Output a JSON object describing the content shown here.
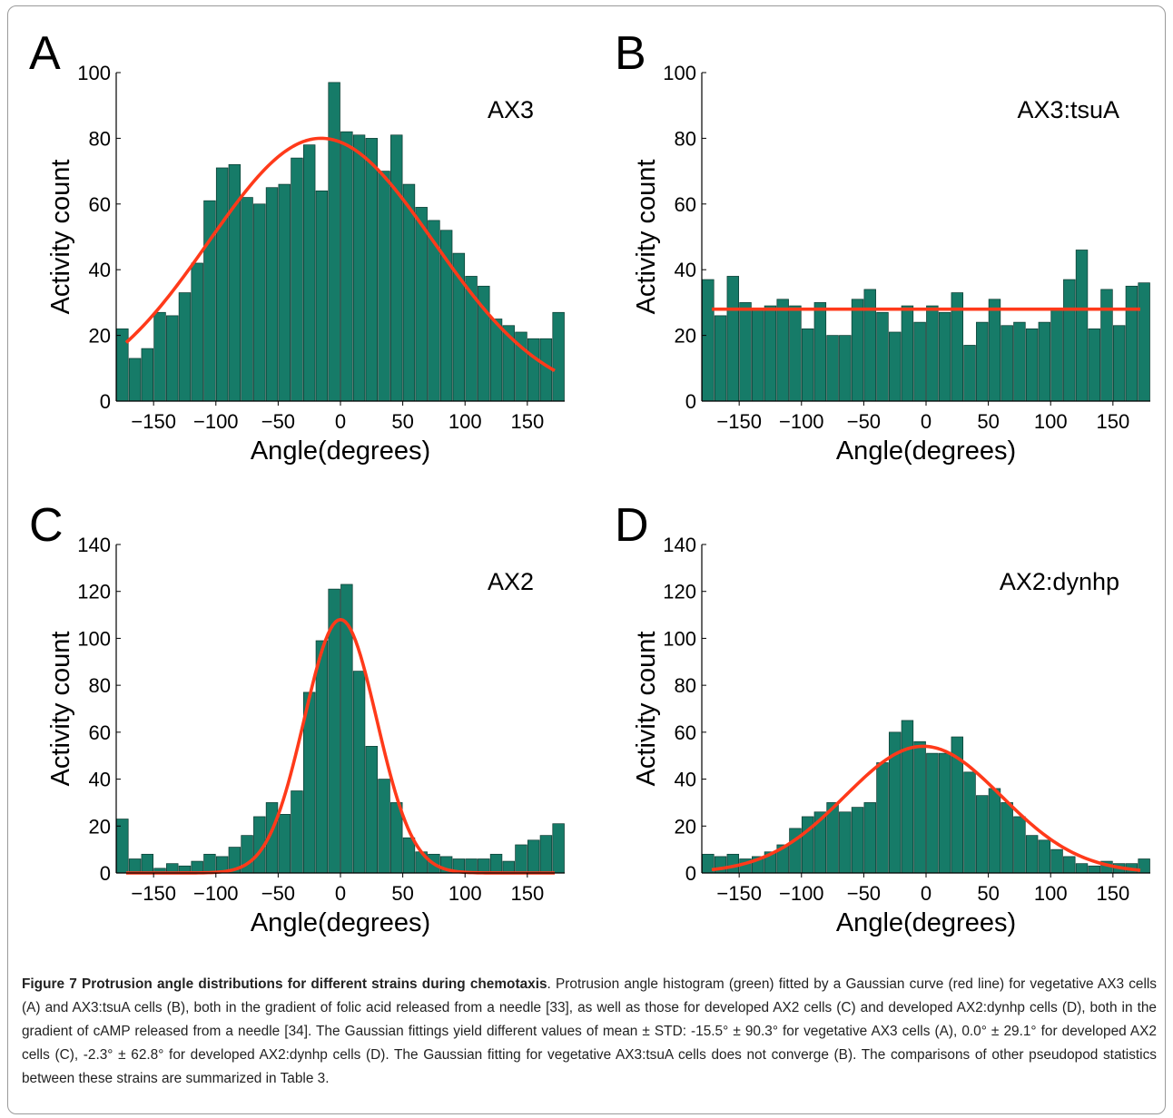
{
  "chart_data": [
    {
      "panel": "A",
      "type": "bar",
      "annotation": "AX3",
      "xlabel": "Angle(degrees)",
      "ylabel": "Activity count",
      "xlim": [
        -180,
        180
      ],
      "ylim": [
        0,
        100
      ],
      "xticks": [
        -150,
        -100,
        -50,
        0,
        50,
        100,
        150
      ],
      "yticks": [
        0,
        20,
        40,
        60,
        80,
        100
      ],
      "x": [
        -175,
        -165,
        -155,
        -145,
        -135,
        -125,
        -115,
        -105,
        -95,
        -85,
        -75,
        -65,
        -55,
        -45,
        -35,
        -25,
        -15,
        -5,
        5,
        15,
        25,
        35,
        45,
        55,
        65,
        75,
        85,
        95,
        105,
        115,
        125,
        135,
        145,
        155,
        165,
        175
      ],
      "values": [
        22,
        13,
        16,
        27,
        26,
        33,
        42,
        61,
        71,
        72,
        62,
        60,
        65,
        66,
        74,
        78,
        64,
        97,
        82,
        81,
        80,
        70,
        81,
        66,
        59,
        55,
        52,
        45,
        38,
        35,
        25,
        23,
        21,
        19,
        19,
        27
      ],
      "fit": {
        "type": "gaussian",
        "mean": -15.5,
        "std": 90.3,
        "amplitude": 80
      },
      "bar_color": "#167b68",
      "fit_color": "#ff3a1a"
    },
    {
      "panel": "B",
      "type": "bar",
      "annotation": "AX3:tsuA",
      "xlabel": "Angle(degrees)",
      "ylabel": "Activity count",
      "xlim": [
        -180,
        180
      ],
      "ylim": [
        0,
        100
      ],
      "xticks": [
        -150,
        -100,
        -50,
        0,
        50,
        100,
        150
      ],
      "yticks": [
        0,
        20,
        40,
        60,
        80,
        100
      ],
      "x": [
        -175,
        -165,
        -155,
        -145,
        -135,
        -125,
        -115,
        -105,
        -95,
        -85,
        -75,
        -65,
        -55,
        -45,
        -35,
        -25,
        -15,
        -5,
        5,
        15,
        25,
        35,
        45,
        55,
        65,
        75,
        85,
        95,
        105,
        115,
        125,
        135,
        145,
        155,
        165,
        175
      ],
      "values": [
        37,
        26,
        38,
        30,
        28,
        29,
        31,
        29,
        22,
        30,
        20,
        20,
        31,
        34,
        27,
        21,
        29,
        24,
        29,
        27,
        33,
        17,
        24,
        31,
        23,
        24,
        22,
        24,
        28,
        37,
        46,
        22,
        34,
        23,
        35,
        36
      ],
      "fit": {
        "type": "flat",
        "value": 28
      },
      "bar_color": "#167b68",
      "fit_color": "#ff3a1a"
    },
    {
      "panel": "C",
      "type": "bar",
      "annotation": "AX2",
      "xlabel": "Angle(degrees)",
      "ylabel": "Activity count",
      "xlim": [
        -180,
        180
      ],
      "ylim": [
        0,
        140
      ],
      "xticks": [
        -150,
        -100,
        -50,
        0,
        50,
        100,
        150
      ],
      "yticks": [
        0,
        20,
        40,
        60,
        80,
        100,
        120,
        140
      ],
      "x": [
        -175,
        -165,
        -155,
        -145,
        -135,
        -125,
        -115,
        -105,
        -95,
        -85,
        -75,
        -65,
        -55,
        -45,
        -35,
        -25,
        -15,
        -5,
        5,
        15,
        25,
        35,
        45,
        55,
        65,
        75,
        85,
        95,
        105,
        115,
        125,
        135,
        145,
        155,
        165,
        175
      ],
      "values": [
        23,
        6,
        8,
        2,
        4,
        3,
        5,
        8,
        7,
        11,
        16,
        24,
        30,
        25,
        35,
        77,
        99,
        121,
        123,
        86,
        54,
        40,
        30,
        15,
        9,
        8,
        7,
        6,
        6,
        6,
        8,
        5,
        12,
        14,
        16,
        21
      ],
      "fit": {
        "type": "gaussian",
        "mean": 0.0,
        "std": 29.1,
        "amplitude": 108
      },
      "bar_color": "#167b68",
      "fit_color": "#ff3a1a"
    },
    {
      "panel": "D",
      "type": "bar",
      "annotation": "AX2:dynhp",
      "xlabel": "Angle(degrees)",
      "ylabel": "Activity count",
      "xlim": [
        -180,
        180
      ],
      "ylim": [
        0,
        140
      ],
      "xticks": [
        -150,
        -100,
        -50,
        0,
        50,
        100,
        150
      ],
      "yticks": [
        0,
        20,
        40,
        60,
        80,
        100,
        120,
        140
      ],
      "x": [
        -175,
        -165,
        -155,
        -145,
        -135,
        -125,
        -115,
        -105,
        -95,
        -85,
        -75,
        -65,
        -55,
        -45,
        -35,
        -25,
        -15,
        -5,
        5,
        15,
        25,
        35,
        45,
        55,
        65,
        75,
        85,
        95,
        105,
        115,
        125,
        135,
        145,
        155,
        165,
        175
      ],
      "values": [
        8,
        7,
        8,
        6,
        7,
        9,
        12,
        19,
        24,
        26,
        30,
        26,
        28,
        30,
        47,
        60,
        65,
        56,
        51,
        51,
        58,
        43,
        33,
        36,
        30,
        24,
        16,
        14,
        10,
        7,
        4,
        3,
        5,
        4,
        4,
        6
      ],
      "fit": {
        "type": "gaussian",
        "mean": -2.3,
        "std": 62.8,
        "amplitude": 54
      },
      "bar_color": "#167b68",
      "fit_color": "#ff3a1a"
    }
  ],
  "caption": {
    "title": "Figure 7 Protrusion angle distributions for different strains during chemotaxis",
    "text": ". Protrusion angle histogram (green) fitted by a Gaussian curve (red line) for vegetative AX3 cells (A) and AX3:tsuA cells (B), both in the gradient of folic acid released from a needle [33], as well as those for developed AX2 cells (C) and developed AX2:dynhp cells (D), both in the gradient of cAMP released from a needle [34]. The Gaussian fittings yield different values of mean ± STD: -15.5° ± 90.3° for vegetative AX3 cells (A), 0.0° ± 29.1° for developed AX2 cells (C), -2.3° ± 62.8° for developed AX2:dynhp cells (D). The Gaussian fitting for vegetative AX3:tsuA cells does not converge (B). The comparisons of other pseudopod statistics between these strains are summarized in Table 3."
  }
}
